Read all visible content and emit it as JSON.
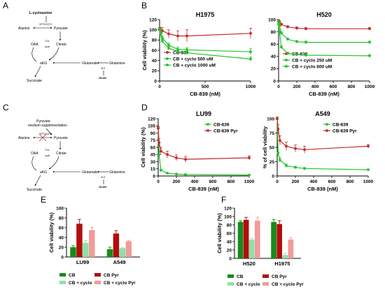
{
  "panel_labels": [
    "A",
    "B",
    "C",
    "D",
    "E",
    "F"
  ],
  "diagram_a": {
    "cysteine": "L-cycloserine",
    "alanine": "Alanine",
    "pyruvate": "Pyruvate",
    "enzyme": "GPT2/GOT2",
    "oaa": "OAA",
    "tca": "TCA",
    "cycle": "cycle",
    "citrate": "Citrate",
    "akg": "aKG",
    "glutamate": "Glutamate",
    "glutamine": "Glutamine",
    "gls": "GLS",
    "drug": "CB-839",
    "succinate": "Succinate"
  },
  "diagram_c": {
    "note1": "Pyruvate",
    "note2": "medium supplementation",
    "alanine": "Alanine",
    "pyruvate": "Pyruvate",
    "enzyme": "GPT2/GOT2",
    "oaa": "OAA",
    "tca": "TCA",
    "cycle": "cycle",
    "citrate": "Citrate",
    "akg": "aKG",
    "glutamate": "Glutamate",
    "glutamine": "Glutamine",
    "gls": "GLS",
    "drug": "CB-839",
    "succinate": "Succinate"
  },
  "colors": {
    "cb": "#c62828",
    "cyclo": "#22c32a",
    "e_cb": "#178a1a",
    "e_cbpyr": "#b20d0d",
    "e_cyclo": "#8fe0a8",
    "e_cyclopyr": "#f29a9a"
  },
  "chart_data": [
    {
      "id": "B-H1975",
      "type": "line",
      "title": "H1975",
      "xlabel": "CB-839 (nM)",
      "ylabel": "Cell viability (%)",
      "xlim": [
        0,
        1000
      ],
      "ylim": [
        0,
        120
      ],
      "xticks": [
        "0",
        "500",
        "1000"
      ],
      "yticks": [
        "0",
        "20",
        "40",
        "60",
        "80",
        "100",
        "120"
      ],
      "legend": "inside-left",
      "series": [
        {
          "name": "CB-839",
          "color": "#c62828",
          "x": [
            0,
            10,
            30,
            100,
            200,
            300,
            1000
          ],
          "y": [
            100,
            100,
            98,
            92,
            88,
            88,
            93
          ],
          "err": [
            4,
            5,
            6,
            8,
            10,
            12,
            10
          ]
        },
        {
          "name": "CB + cyclo 500 uM",
          "color": "#22c32a",
          "x": [
            0,
            10,
            30,
            100,
            200,
            300,
            1000
          ],
          "y": [
            100,
            96,
            84,
            70,
            62,
            61,
            57
          ],
          "err": [
            3,
            3,
            4,
            4,
            4,
            4,
            6
          ]
        },
        {
          "name": "CB + cyclo 1000 uM",
          "color": "#22c32a",
          "x": [
            0,
            10,
            30,
            100,
            200,
            300,
            1000
          ],
          "y": [
            100,
            92,
            78,
            64,
            58,
            55,
            43
          ],
          "err": [
            3,
            3,
            3,
            3,
            3,
            3,
            4
          ]
        }
      ]
    },
    {
      "id": "B-H520",
      "type": "line",
      "title": "H520",
      "xlabel": "CB-839 (nM)",
      "ylabel": "",
      "xlim": [
        0,
        1000
      ],
      "ylim": [
        0,
        100
      ],
      "xticks": [
        "0",
        "200",
        "400",
        "600",
        "800",
        "1000"
      ],
      "yticks": [
        "0",
        "20",
        "40",
        "60",
        "80",
        "100"
      ],
      "legend": "inside-left",
      "series": [
        {
          "name": "CB-839",
          "color": "#c62828",
          "x": [
            0,
            10,
            30,
            100,
            200,
            300,
            1000
          ],
          "y": [
            98,
            96,
            92,
            88,
            86,
            85,
            85
          ],
          "err": [
            2,
            2,
            2,
            2,
            2,
            2,
            2
          ]
        },
        {
          "name": "CB + cyclo 250 uM",
          "color": "#22c32a",
          "x": [
            0,
            10,
            30,
            100,
            200,
            300,
            1000
          ],
          "y": [
            96,
            90,
            78,
            68,
            64,
            63,
            63
          ],
          "err": [
            2,
            2,
            2,
            2,
            2,
            2,
            2
          ]
        },
        {
          "name": "CB + cyclo 600 uM",
          "color": "#22c32a",
          "x": [
            0,
            10,
            30,
            100,
            200,
            300,
            1000
          ],
          "y": [
            92,
            80,
            55,
            45,
            43,
            42,
            41
          ],
          "err": [
            2,
            2,
            2,
            2,
            2,
            2,
            2
          ]
        }
      ]
    },
    {
      "id": "D-LU99",
      "type": "line",
      "title": "LU99",
      "xlabel": "CB-839 (nM)",
      "ylabel": "Cell viability (%)",
      "xlim": [
        0,
        1000
      ],
      "ylim": [
        0,
        120
      ],
      "xticks": [
        "0",
        "200",
        "400",
        "600",
        "800",
        "1000"
      ],
      "yticks": [
        "0",
        "15",
        "30",
        "45",
        "60",
        "75",
        "90",
        "105",
        "120"
      ],
      "legend": "top-right",
      "series": [
        {
          "name": "CB-839",
          "color": "#22c32a",
          "x": [
            0,
            10,
            30,
            100,
            200,
            300,
            1000
          ],
          "y": [
            100,
            45,
            12,
            6,
            4,
            3,
            2
          ],
          "err": [
            3,
            5,
            2,
            1,
            1,
            1,
            1
          ]
        },
        {
          "name": "CB-839 Pyr",
          "color": "#c62828",
          "x": [
            0,
            10,
            30,
            100,
            200,
            300,
            1000
          ],
          "y": [
            100,
            70,
            52,
            45,
            38,
            35,
            38
          ],
          "err": [
            4,
            8,
            8,
            7,
            6,
            6,
            4
          ]
        }
      ]
    },
    {
      "id": "D-A549",
      "type": "line",
      "title": "A549",
      "xlabel": "CB-839 (nM)",
      "ylabel": "% of cell viability",
      "xlim": [
        0,
        1000
      ],
      "ylim": [
        0,
        100
      ],
      "xticks": [
        "0",
        "200",
        "400",
        "600",
        "800",
        "1000"
      ],
      "yticks": [
        "0",
        "25",
        "50",
        "75",
        "100"
      ],
      "legend": "top-right",
      "series": [
        {
          "name": "CB-839",
          "color": "#22c32a",
          "x": [
            0,
            10,
            30,
            100,
            200,
            300,
            1000
          ],
          "y": [
            100,
            40,
            28,
            18,
            15,
            13,
            11
          ],
          "err": [
            3,
            5,
            4,
            3,
            2,
            2,
            1
          ]
        },
        {
          "name": "CB-839 Pyr",
          "color": "#c62828",
          "x": [
            0,
            10,
            30,
            100,
            200,
            300,
            1000
          ],
          "y": [
            100,
            82,
            62,
            52,
            48,
            46,
            52
          ],
          "err": [
            3,
            8,
            8,
            7,
            6,
            6,
            3
          ]
        }
      ]
    },
    {
      "id": "E",
      "type": "bar",
      "title": "",
      "xlabel": "",
      "ylabel": "Cell viability (%)",
      "ylim": [
        0,
        100
      ],
      "yticks": [
        "0",
        "20",
        "40",
        "60",
        "80",
        "100"
      ],
      "categories": [
        "LU99",
        "A549"
      ],
      "legend": "bottom",
      "series": [
        {
          "name": "CB",
          "color": "#178a1a",
          "values": [
            20,
            16
          ],
          "err": [
            3,
            4
          ]
        },
        {
          "name": "CB Pyr",
          "color": "#b20d0d",
          "values": [
            68,
            48
          ],
          "err": [
            9,
            6
          ]
        },
        {
          "name": "CB + cyclo",
          "color": "#8fe0a8",
          "values": [
            29,
            18
          ],
          "err": [
            5,
            1
          ]
        },
        {
          "name": "CB + cyclo Pyr",
          "color": "#f29a9a",
          "values": [
            55,
            32
          ],
          "err": [
            6,
            2
          ]
        }
      ]
    },
    {
      "id": "F",
      "type": "bar",
      "title": "",
      "xlabel": "",
      "ylabel": "Cell viability (%)",
      "ylim": [
        0,
        120
      ],
      "yticks": [
        "0",
        "20",
        "40",
        "60",
        "80",
        "100",
        "120"
      ],
      "categories": [
        "H520",
        "H1975"
      ],
      "legend": "bottom",
      "series": [
        {
          "name": "CB",
          "color": "#178a1a",
          "values": [
            87,
            87
          ],
          "err": [
            3,
            6
          ]
        },
        {
          "name": "CB Pyr",
          "color": "#b20d0d",
          "values": [
            92,
            82
          ],
          "err": [
            6,
            8
          ]
        },
        {
          "name": "CB + cyclo",
          "color": "#8fe0a8",
          "values": [
            45,
            8
          ],
          "err": [
            3,
            4
          ]
        },
        {
          "name": "CB + cyclo Pyr",
          "color": "#f29a9a",
          "values": [
            90,
            45
          ],
          "err": [
            8,
            4
          ]
        }
      ]
    }
  ]
}
